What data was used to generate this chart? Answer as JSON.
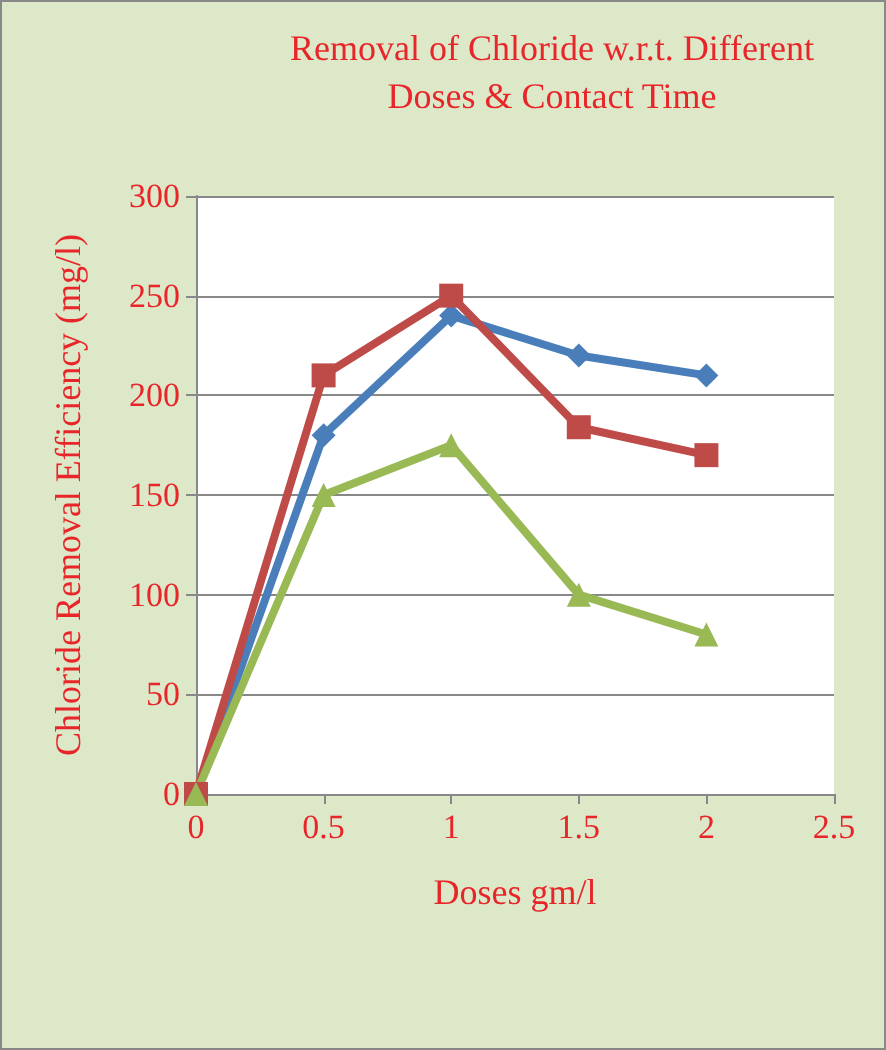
{
  "chart_data": {
    "type": "line",
    "title": "Removal of Chloride w.r.t. Different\nDoses & Contact Time",
    "xlabel": "Doses gm/l",
    "ylabel": "Chloride Removal Efficiency (mg/l)",
    "x": [
      0,
      0.5,
      1,
      1.5,
      2
    ],
    "series": [
      {
        "color": "#4a7ebb",
        "values": [
          0,
          180,
          240,
          220,
          210
        ],
        "marker": "diamond"
      },
      {
        "color": "#be4b48",
        "values": [
          0,
          210,
          250,
          184,
          170
        ],
        "marker": "square"
      },
      {
        "color": "#98b954",
        "values": [
          0,
          150,
          175,
          100,
          80
        ],
        "marker": "triangle"
      }
    ],
    "xlim": [
      0,
      2.5
    ],
    "xticks": [
      0,
      0.5,
      1,
      1.5,
      2,
      2.5
    ],
    "ylim": [
      0,
      300
    ],
    "yticks": [
      0,
      50,
      100,
      150,
      200,
      250,
      300
    ],
    "grid": "y"
  }
}
